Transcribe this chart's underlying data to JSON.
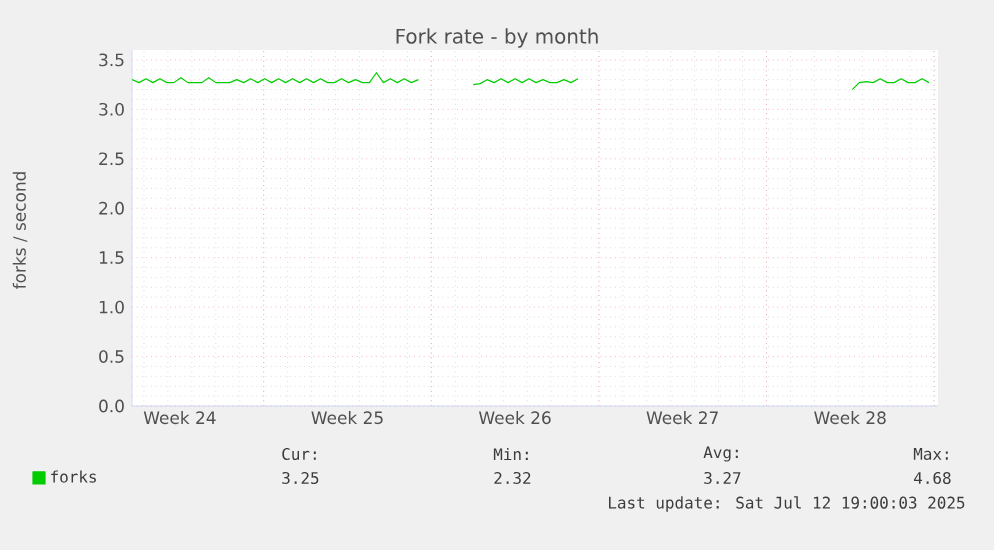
{
  "chart_data": {
    "type": "line",
    "title": "Fork rate - by month",
    "ylabel": "forks / second",
    "x": [
      "2025-06-09T12:00",
      "2025-06-09T19:00",
      "2025-06-10T02:00",
      "2025-06-10T09:00",
      "2025-06-10T16:00",
      "2025-06-10T23:00",
      "2025-06-11T06:00",
      "2025-06-11T13:00",
      "2025-06-11T20:00",
      "2025-06-12T03:00",
      "2025-06-12T10:00",
      "2025-06-12T17:00",
      "2025-06-13T00:00",
      "2025-06-13T07:00",
      "2025-06-13T14:00",
      "2025-06-13T21:00",
      "2025-06-14T04:00",
      "2025-06-14T11:00",
      "2025-06-14T18:00",
      "2025-06-15T01:00",
      "2025-06-15T08:00",
      "2025-06-15T15:00",
      "2025-06-15T22:00",
      "2025-06-16T05:00",
      "2025-06-16T12:00",
      "2025-06-16T19:00",
      "2025-06-17T02:00",
      "2025-06-17T09:00",
      "2025-06-17T16:00",
      "2025-06-17T23:00",
      "2025-06-18T06:00",
      "2025-06-18T13:00",
      "2025-06-18T20:00",
      "2025-06-19T03:00",
      "2025-06-19T10:00",
      "2025-06-19T17:00",
      "2025-06-20T00:00",
      "2025-06-20T07:00",
      "2025-06-20T14:00",
      "2025-06-20T21:00",
      "2025-06-21T04:00",
      "2025-06-21T11:00",
      "2025-06-22T12:00",
      "2025-06-23T18:00",
      "2025-06-24T01:00",
      "2025-06-24T08:00",
      "2025-06-24T15:00",
      "2025-06-24T22:00",
      "2025-06-25T05:00",
      "2025-06-25T12:00",
      "2025-06-25T19:00",
      "2025-06-26T02:00",
      "2025-06-26T09:00",
      "2025-06-26T16:00",
      "2025-06-26T23:00",
      "2025-06-27T06:00",
      "2025-06-27T13:00",
      "2025-06-27T20:00",
      "2025-06-28T03:00",
      "2025-07-04T00:00",
      "2025-07-09T14:00",
      "2025-07-09T21:00",
      "2025-07-10T04:00",
      "2025-07-10T11:00",
      "2025-07-10T18:00",
      "2025-07-11T01:00",
      "2025-07-11T08:00",
      "2025-07-11T15:00",
      "2025-07-11T22:00",
      "2025-07-12T05:00",
      "2025-07-12T12:00",
      "2025-07-12T19:00"
    ],
    "series": [
      {
        "name": "forks",
        "color": "#00cc00",
        "values": [
          3.3,
          3.27,
          3.31,
          3.27,
          3.31,
          3.27,
          3.27,
          3.32,
          3.27,
          3.27,
          3.27,
          3.32,
          3.27,
          3.27,
          3.27,
          3.3,
          3.27,
          3.31,
          3.27,
          3.31,
          3.27,
          3.31,
          3.27,
          3.31,
          3.27,
          3.31,
          3.27,
          3.31,
          3.27,
          3.27,
          3.31,
          3.27,
          3.3,
          3.27,
          3.27,
          3.37,
          3.27,
          3.31,
          3.27,
          3.31,
          3.27,
          3.3,
          null,
          3.25,
          3.26,
          3.3,
          3.27,
          3.31,
          3.27,
          3.31,
          3.27,
          3.31,
          3.27,
          3.3,
          3.27,
          3.27,
          3.3,
          3.27,
          3.31,
          null,
          3.2,
          3.27,
          3.28,
          3.27,
          3.31,
          3.27,
          3.27,
          3.31,
          3.27,
          3.27,
          3.31,
          3.27
        ]
      }
    ],
    "xlim": [
      "2025-06-09T12:00",
      "2025-07-13T04:00"
    ],
    "xticks": [
      {
        "value": "2025-06-11T12:00",
        "label": "Week 24"
      },
      {
        "value": "2025-06-18T12:00",
        "label": "Week 25"
      },
      {
        "value": "2025-06-25T12:00",
        "label": "Week 26"
      },
      {
        "value": "2025-07-02T12:00",
        "label": "Week 27"
      },
      {
        "value": "2025-07-09T12:00",
        "label": "Week 28"
      },
      {
        "value": "2025-06-15",
        "label": null
      },
      {
        "value": "2025-06-22",
        "label": null
      },
      {
        "value": "2025-06-29",
        "label": null
      },
      {
        "value": "2025-07-06",
        "label": null
      },
      {
        "value": "2025-07-13",
        "label": null
      }
    ],
    "ylim": [
      0,
      3.6
    ],
    "yticks": [
      {
        "value": 0,
        "label": "0.0"
      },
      {
        "value": 0.5,
        "label": "0.5"
      },
      {
        "value": 1,
        "label": "1.0"
      },
      {
        "value": 1.5,
        "label": "1.5"
      },
      {
        "value": 2,
        "label": "2.0"
      },
      {
        "value": 2.5,
        "label": "2.5"
      },
      {
        "value": 3,
        "label": "3.0"
      },
      {
        "value": 3.5,
        "label": "3.5"
      }
    ],
    "grid": true,
    "legend": "bottom",
    "marker": "none",
    "line_style": "solid",
    "annotations": [
      "Cur:",
      "Min:",
      "Avg:",
      "Max:",
      "3.25",
      "2.32",
      "3.27",
      "4.68",
      "Last update: Sat Jul 12 19:00:03 2025"
    ]
  }
}
